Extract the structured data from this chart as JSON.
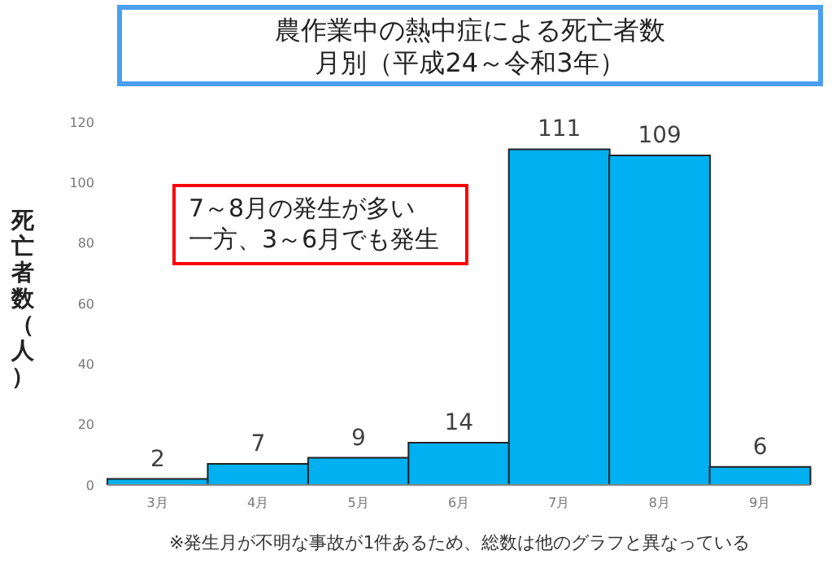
{
  "chart_data": {
    "type": "bar",
    "title": "農作業中の熱中症による死亡者数",
    "subtitle": "月別（平成24～令和3年）",
    "ylabel": "死亡者数（人）",
    "categories": [
      "3月",
      "4月",
      "5月",
      "6月",
      "7月",
      "8月",
      "9月"
    ],
    "values": [
      2,
      7,
      9,
      14,
      111,
      109,
      6
    ],
    "color": "#00b0f0",
    "ylim": [
      0,
      120
    ],
    "yticks": [
      0,
      20,
      40,
      60,
      80,
      100,
      120
    ],
    "data_labels": true,
    "annotations": [
      "7～8月の発生が多い",
      "一方、3～6月でも発生",
      "※発生月が不明な事故が1件あるため、総数は他のグラフと異なっている"
    ]
  }
}
